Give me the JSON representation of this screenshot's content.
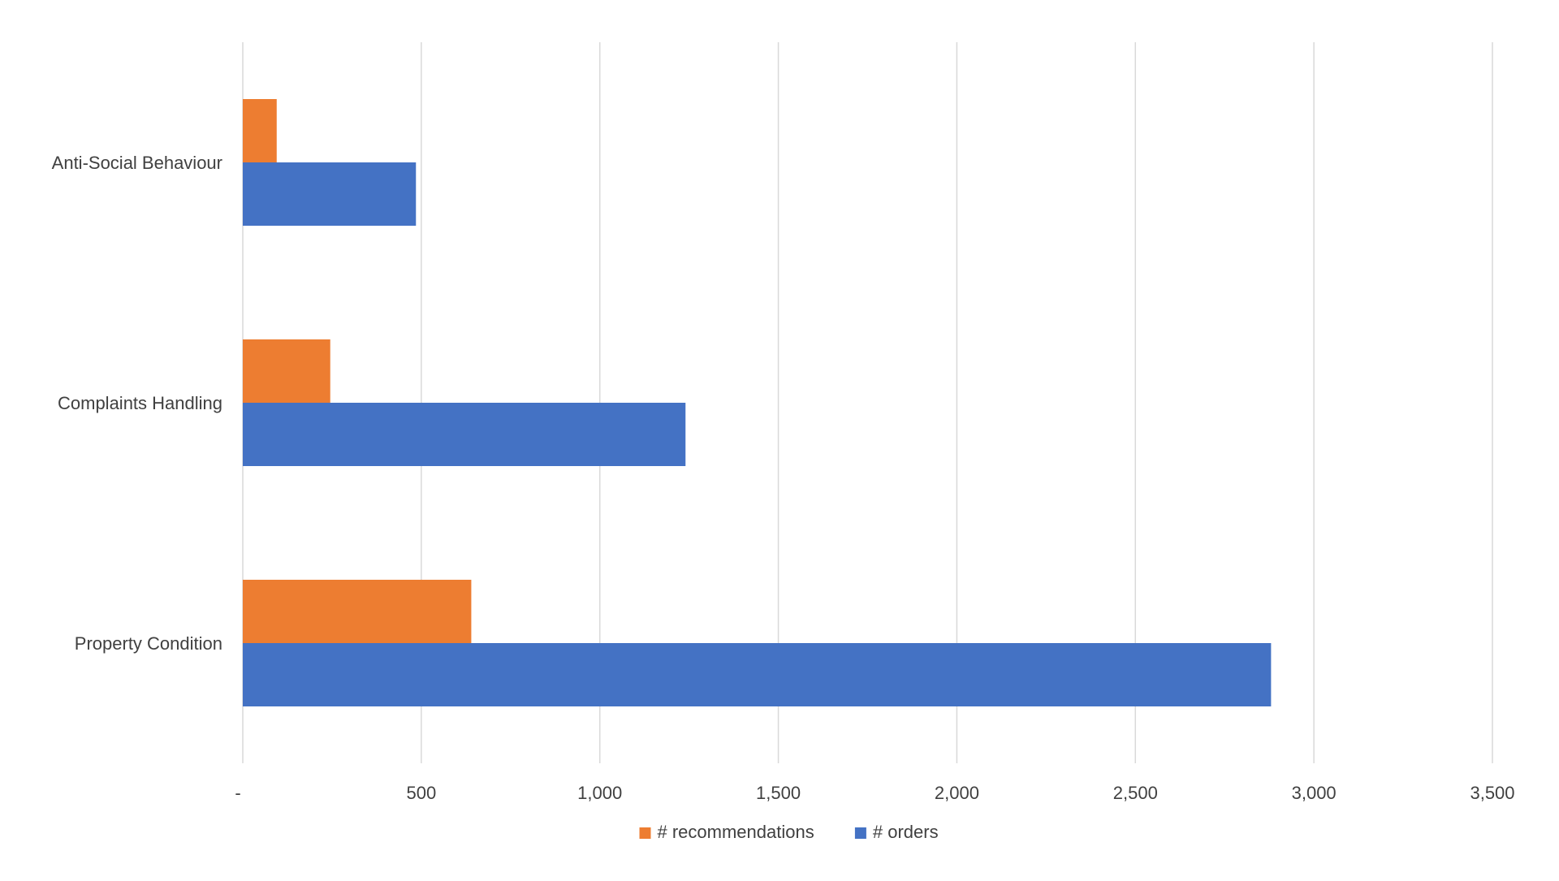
{
  "chart_data": {
    "type": "bar",
    "orientation": "horizontal",
    "categories": [
      "Anti-Social Behaviour",
      "Complaints Handling",
      "Property Condition"
    ],
    "series": [
      {
        "name": "# recommendations",
        "values": [
          95,
          245,
          640
        ],
        "color": "#ED7D31"
      },
      {
        "name": "# orders",
        "values": [
          485,
          1240,
          2880
        ],
        "color": "#4472C4"
      }
    ],
    "x_ticks": [
      0,
      500,
      1000,
      1500,
      2000,
      2500,
      3000,
      3500
    ],
    "x_tick_labels": [
      "-",
      "500",
      "1,000",
      "1,500",
      "2,000",
      "2,500",
      "3,000",
      "3,500"
    ],
    "xlim": [
      0,
      3500
    ],
    "title": "",
    "xlabel": "",
    "ylabel": "",
    "grid": "vertical",
    "legend_position": "bottom"
  }
}
